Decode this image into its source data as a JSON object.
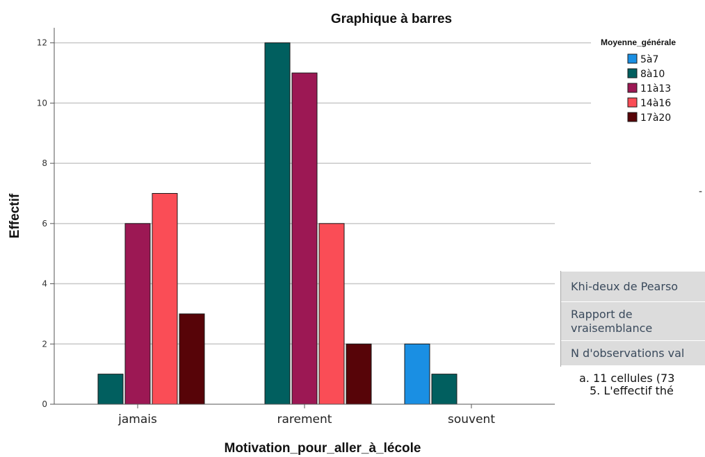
{
  "chart_data": {
    "type": "bar",
    "title": "Graphique à barres",
    "xlabel": "Motivation_pour_aller_à_lécole",
    "ylabel": "Effectif",
    "categories": [
      "jamais",
      "rarement",
      "souvent"
    ],
    "ylim": [
      0,
      12.5
    ],
    "yticks": [
      0,
      2,
      4,
      6,
      8,
      10,
      12
    ],
    "grid": true,
    "legend_title": "Moyenne_générale",
    "legend_position": "top-right",
    "series": [
      {
        "name": "5à7",
        "color": "#1a8fe3",
        "values": [
          0,
          0,
          2
        ]
      },
      {
        "name": "8à10",
        "color": "#015f5f",
        "values": [
          1,
          12,
          1
        ]
      },
      {
        "name": "11à13",
        "color": "#9c1854",
        "values": [
          6,
          11,
          0
        ]
      },
      {
        "name": "14à16",
        "color": "#fa4d56",
        "values": [
          7,
          6,
          0
        ]
      },
      {
        "name": "17à20",
        "color": "#570408",
        "values": [
          3,
          2,
          0
        ]
      }
    ]
  },
  "stats_table": {
    "rows": [
      {
        "label": "Khi-deux de Pearso"
      },
      {
        "label_line1": "Rapport de",
        "label_line2": "vraisemblance"
      },
      {
        "label": "N d'observations val"
      }
    ]
  },
  "footnotes": {
    "line1": "a. 11 cellules (73",
    "line2": "5. L'effectif thé"
  },
  "stray_mark": "-"
}
